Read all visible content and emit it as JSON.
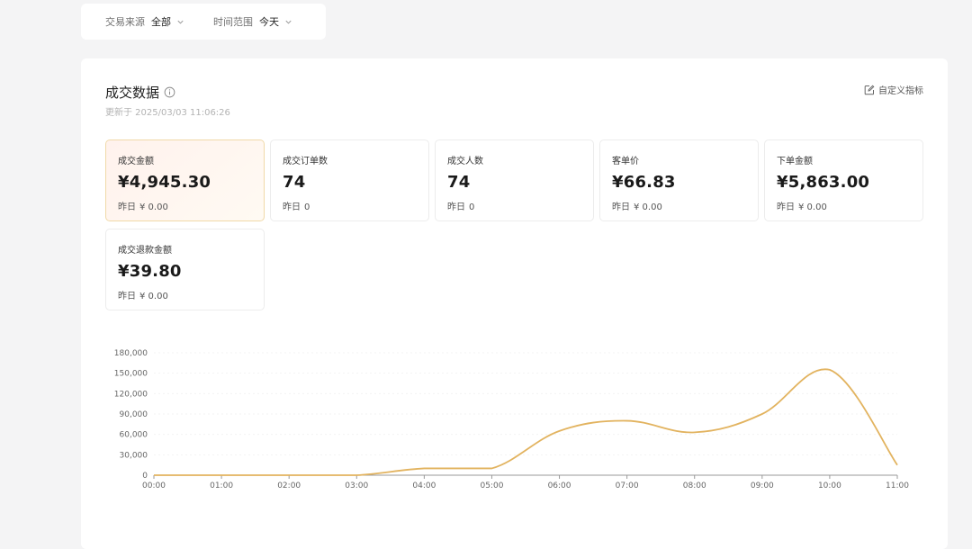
{
  "filters": [
    {
      "label": "交易来源",
      "value": "全部"
    },
    {
      "label": "时间范围",
      "value": "今天"
    }
  ],
  "panel": {
    "title": "成交数据",
    "updated": "更新于 2025/03/03 11:06:26",
    "custom_label": "自定义指标"
  },
  "metrics": [
    {
      "label": "成交金额",
      "value": "¥4,945.30",
      "prev_label": "昨日",
      "prev_value": "¥ 0.00",
      "active": true
    },
    {
      "label": "成交订单数",
      "value": "74",
      "prev_label": "昨日",
      "prev_value": "0"
    },
    {
      "label": "成交人数",
      "value": "74",
      "prev_label": "昨日",
      "prev_value": "0"
    },
    {
      "label": "客单价",
      "value": "¥66.83",
      "prev_label": "昨日",
      "prev_value": "¥ 0.00"
    },
    {
      "label": "下单金额",
      "value": "¥5,863.00",
      "prev_label": "昨日",
      "prev_value": "¥ 0.00"
    },
    {
      "label": "成交退款金额",
      "value": "¥39.80",
      "prev_label": "昨日",
      "prev_value": "¥ 0.00"
    }
  ],
  "colors": {
    "line": "#e2b35f",
    "accent_border": "#f0d9a8"
  },
  "chart_data": {
    "type": "line",
    "x": [
      "00:00",
      "01:00",
      "02:00",
      "03:00",
      "04:00",
      "05:00",
      "06:00",
      "07:00",
      "08:00",
      "09:00",
      "10:00",
      "11:00"
    ],
    "series": [
      {
        "values": [
          0,
          0,
          0,
          0,
          10000,
          10000,
          65000,
          80000,
          63000,
          90000,
          155000,
          15000
        ]
      }
    ],
    "y_ticks": [
      "0",
      "30,000",
      "60,000",
      "90,000",
      "120,000",
      "150,000",
      "180,000"
    ],
    "ylim": [
      0,
      180000
    ],
    "grid": true
  }
}
